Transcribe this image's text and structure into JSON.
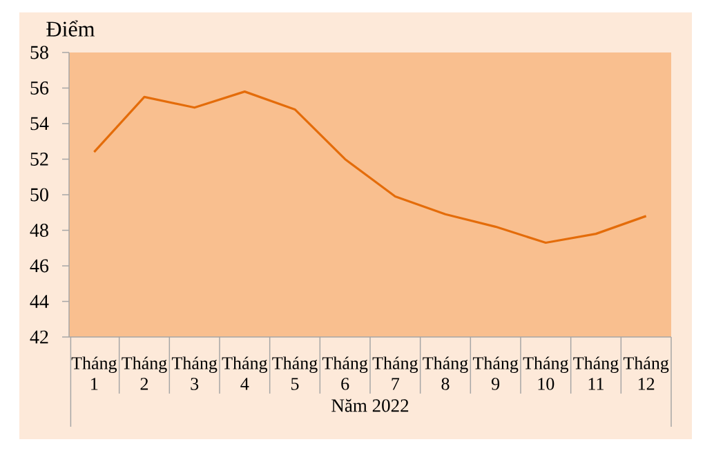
{
  "chart_data": {
    "type": "line",
    "xlabel": "Năm 2022",
    "ylabel": "Điểm",
    "categories": [
      "Tháng 1",
      "Tháng 2",
      "Tháng 3",
      "Tháng 4",
      "Tháng 5",
      "Tháng 6",
      "Tháng 7",
      "Tháng 8",
      "Tháng 9",
      "Tháng 10",
      "Tháng 11",
      "Tháng 12"
    ],
    "series": [
      {
        "color": "#e46c0a",
        "values": [
          52.4,
          55.5,
          54.9,
          55.8,
          54.8,
          52.0,
          49.9,
          48.9,
          48.2,
          47.3,
          47.8,
          48.8
        ]
      }
    ],
    "ylim": [
      42,
      58
    ],
    "yticks": [
      42,
      44,
      46,
      48,
      50,
      52,
      54,
      56,
      58
    ],
    "line_style": "solid"
  }
}
